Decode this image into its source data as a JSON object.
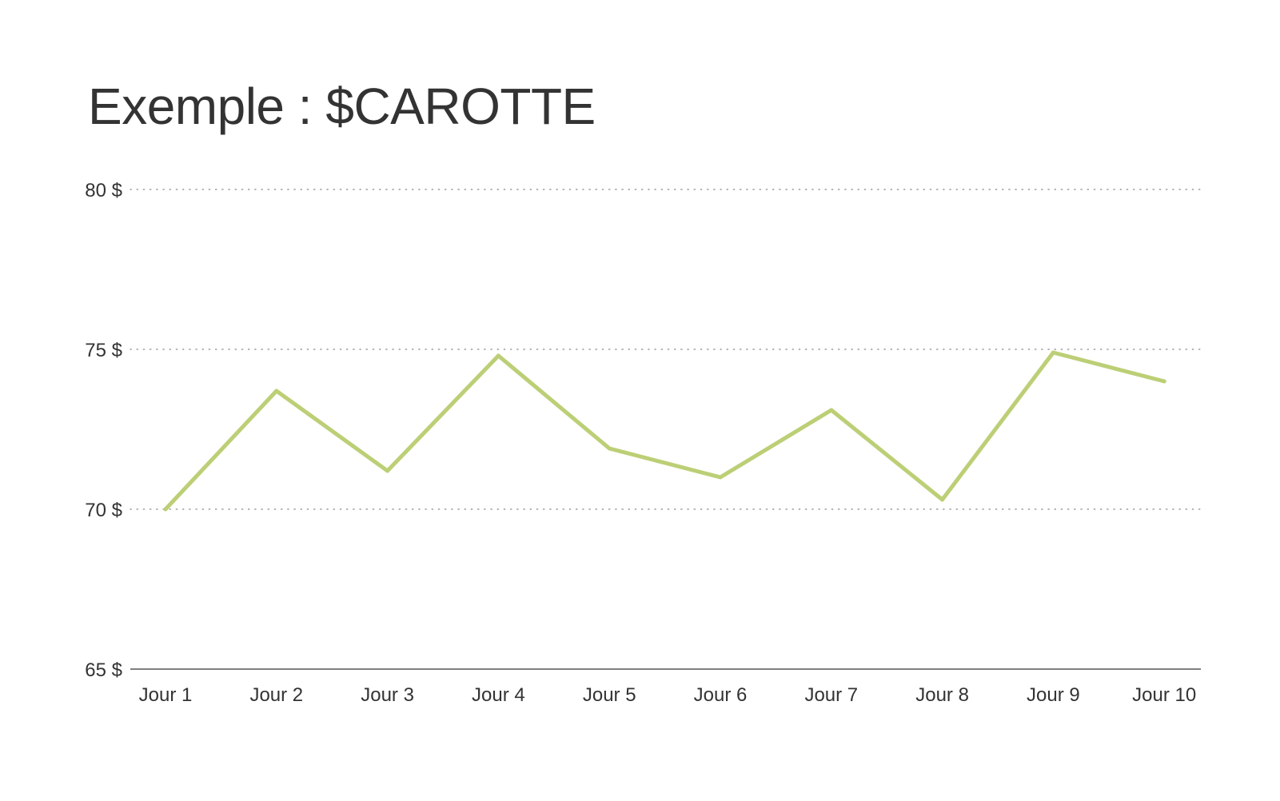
{
  "chart_data": {
    "type": "line",
    "title": "Exemple : $CAROTTE",
    "categories": [
      "Jour 1",
      "Jour 2",
      "Jour 3",
      "Jour 4",
      "Jour 5",
      "Jour 6",
      "Jour 7",
      "Jour 8",
      "Jour 9",
      "Jour 10"
    ],
    "series": [
      {
        "values": [
          70.0,
          73.7,
          71.2,
          74.8,
          71.9,
          71.0,
          73.1,
          70.3,
          74.9,
          74.0
        ],
        "color": "#bccf76"
      }
    ],
    "ylim": [
      65,
      80
    ],
    "yticks": [
      65,
      70,
      75,
      80
    ],
    "ytick_labels": [
      "65 $",
      "70 $",
      "75 $",
      "80 $"
    ],
    "grid": "horizontal-dotted",
    "xlabel": "",
    "ylabel": ""
  }
}
